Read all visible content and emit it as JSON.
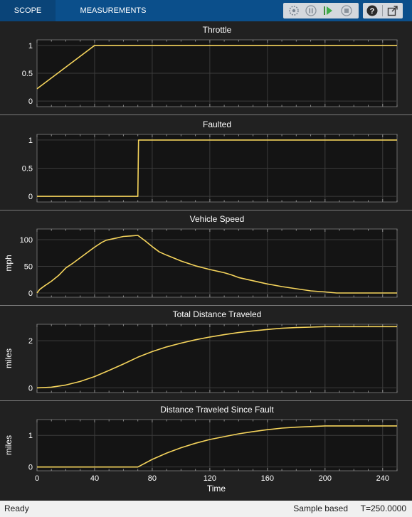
{
  "toolstrip": {
    "tabs": [
      {
        "label": "SCOPE"
      },
      {
        "label": "MEASUREMENTS"
      }
    ],
    "buttons": [
      "highlight-icon",
      "pause-icon",
      "step-forward-icon",
      "stop-icon",
      "help-icon",
      "undock-icon"
    ]
  },
  "colors": {
    "trace": "#f5d45c",
    "axes_bg": "#141414",
    "panel_bg": "#212121",
    "grid": "#3c3c3c",
    "text": "#ffffff"
  },
  "status": {
    "ready": "Ready",
    "mode": "Sample based",
    "time": "T=250.0000"
  },
  "chart_data": [
    {
      "type": "line",
      "title": "Throttle",
      "ylabel": "",
      "xlim": [
        0,
        250
      ],
      "ylim": [
        -0.1,
        1.1
      ],
      "yticks": [
        "0",
        "0.5",
        "1"
      ],
      "ytick_values": [
        0,
        0.5,
        1
      ],
      "x": [
        0,
        40,
        250
      ],
      "y": [
        0.22,
        1,
        1
      ]
    },
    {
      "type": "line",
      "title": "Faulted",
      "ylabel": "",
      "xlim": [
        0,
        250
      ],
      "ylim": [
        -0.1,
        1.1
      ],
      "yticks": [
        "0",
        "0.5",
        "1"
      ],
      "ytick_values": [
        0,
        0.5,
        1
      ],
      "x": [
        0,
        70,
        70.5,
        250
      ],
      "y": [
        0,
        0,
        1,
        1
      ]
    },
    {
      "type": "line",
      "title": "Vehicle Speed",
      "ylabel": "mph",
      "xlim": [
        0,
        250
      ],
      "ylim": [
        -8,
        120
      ],
      "yticks": [
        "0",
        "50",
        "100"
      ],
      "ytick_values": [
        0,
        50,
        100
      ],
      "x": [
        0,
        2,
        5,
        10,
        15,
        20,
        25,
        30,
        35,
        40,
        45,
        48,
        55,
        60,
        65,
        70,
        75,
        80,
        85,
        90,
        100,
        110,
        120,
        130,
        135,
        140,
        150,
        160,
        170,
        180,
        190,
        200,
        208,
        220,
        230,
        240,
        250
      ],
      "y": [
        0,
        7,
        13,
        22,
        33,
        47,
        56,
        66,
        76,
        86,
        95,
        99,
        103,
        106,
        107,
        108,
        98,
        87,
        77,
        71,
        60,
        51,
        44,
        38,
        34,
        29,
        23,
        17,
        12,
        8,
        4,
        2,
        0,
        0,
        0,
        0,
        0
      ]
    },
    {
      "type": "line",
      "title": "Total Distance Traveled",
      "ylabel": "miles",
      "xlim": [
        0,
        250
      ],
      "ylim": [
        -0.2,
        2.7
      ],
      "yticks": [
        "0",
        "2"
      ],
      "ytick_values": [
        0,
        2
      ],
      "x": [
        0,
        10,
        20,
        30,
        40,
        50,
        60,
        70,
        80,
        90,
        100,
        110,
        120,
        130,
        140,
        150,
        160,
        170,
        180,
        190,
        200,
        210,
        220,
        250
      ],
      "y": [
        0,
        0.03,
        0.12,
        0.27,
        0.48,
        0.74,
        1.01,
        1.3,
        1.54,
        1.74,
        1.9,
        2.04,
        2.16,
        2.26,
        2.35,
        2.42,
        2.48,
        2.53,
        2.56,
        2.58,
        2.6,
        2.6,
        2.6,
        2.6
      ]
    },
    {
      "type": "line",
      "title": "Distance Traveled Since Fault",
      "ylabel": "miles",
      "xlim": [
        0,
        250
      ],
      "ylim": [
        -0.12,
        1.5
      ],
      "yticks": [
        "0",
        "1"
      ],
      "ytick_values": [
        0,
        1
      ],
      "x": [
        0,
        70,
        80,
        90,
        100,
        110,
        120,
        130,
        140,
        150,
        160,
        170,
        180,
        190,
        200,
        210,
        250
      ],
      "y": [
        0,
        0,
        0.24,
        0.44,
        0.61,
        0.75,
        0.87,
        0.96,
        1.05,
        1.12,
        1.18,
        1.23,
        1.26,
        1.28,
        1.3,
        1.3,
        1.3
      ],
      "xticks": [
        "0",
        "40",
        "80",
        "120",
        "160",
        "200",
        "240"
      ],
      "xtick_values": [
        0,
        40,
        80,
        120,
        160,
        200,
        240
      ],
      "xlabel": "Time"
    }
  ]
}
